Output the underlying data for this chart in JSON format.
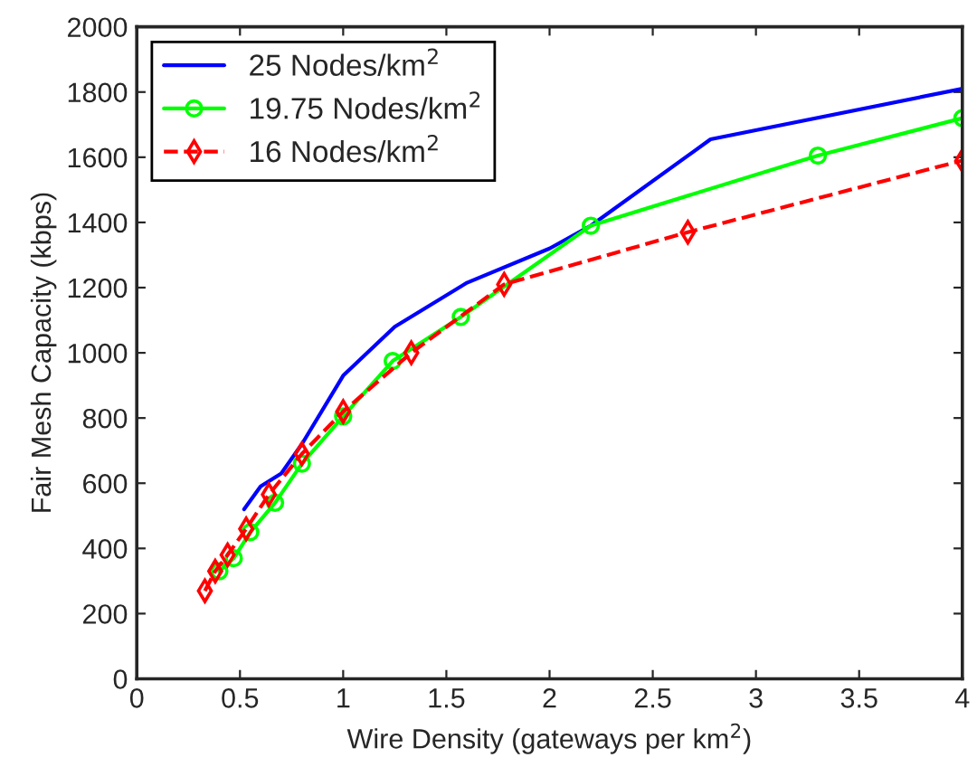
{
  "chart_data": {
    "type": "line",
    "xlabel": "Wire Density (gateways per km$^{2}$)",
    "ylabel": "Fair Mesh Capacity (kbps)",
    "xlim": [
      0,
      4
    ],
    "xticks": [
      0,
      0.5,
      1,
      1.5,
      2,
      2.5,
      3,
      3.5,
      4
    ],
    "ylim": [
      0,
      2000
    ],
    "yticks": [
      0,
      200,
      400,
      600,
      800,
      1000,
      1200,
      1400,
      1600,
      1800,
      2000
    ],
    "grid": false,
    "legend": "top left",
    "series": [
      {
        "name": "25 Nodes/km$^{2}$",
        "color": "#0000ff",
        "marker": "none",
        "line_style": "solid",
        "x": [
          0.52,
          0.6,
          0.7,
          0.8,
          1.0,
          1.25,
          1.6,
          2.0,
          2.2,
          2.78,
          4.0
        ],
        "values": [
          520,
          590,
          630,
          720,
          930,
          1080,
          1215,
          1320,
          1390,
          1655,
          1810
        ]
      },
      {
        "name": "19.75 Nodes/km$^{2}$",
        "color": "#00ff00",
        "marker": "circle",
        "line_style": "solid",
        "x": [
          0.4,
          0.47,
          0.55,
          0.67,
          0.8,
          1.0,
          1.24,
          1.57,
          2.2,
          3.3,
          4.0
        ],
        "values": [
          330,
          370,
          450,
          540,
          660,
          805,
          975,
          1110,
          1390,
          1605,
          1720
        ]
      },
      {
        "name": "16 Nodes/km$^{2}$",
        "color": "#ff0000",
        "marker": "diamond",
        "line_style": "dashed",
        "x": [
          0.33,
          0.38,
          0.44,
          0.53,
          0.64,
          0.8,
          1.0,
          1.33,
          1.78,
          2.67,
          4.0
        ],
        "values": [
          270,
          330,
          380,
          460,
          565,
          690,
          820,
          1000,
          1210,
          1370,
          1590
        ]
      }
    ]
  }
}
